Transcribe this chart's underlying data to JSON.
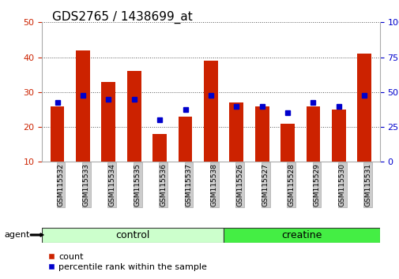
{
  "title": "GDS2765 / 1438699_at",
  "samples": [
    "GSM115532",
    "GSM115533",
    "GSM115534",
    "GSM115535",
    "GSM115536",
    "GSM115537",
    "GSM115538",
    "GSM115526",
    "GSM115527",
    "GSM115528",
    "GSM115529",
    "GSM115530",
    "GSM115531"
  ],
  "count_values": [
    26,
    42,
    33,
    36,
    18,
    23,
    39,
    27,
    26,
    21,
    26,
    25,
    41
  ],
  "percentile_values": [
    27,
    29,
    28,
    28,
    22,
    25,
    29,
    26,
    26,
    24,
    27,
    26,
    29
  ],
  "bar_bottom": 10,
  "ylim_left": [
    10,
    50
  ],
  "ylim_right": [
    0,
    100
  ],
  "yticks_left": [
    10,
    20,
    30,
    40,
    50
  ],
  "yticks_right": [
    0,
    25,
    50,
    75,
    100
  ],
  "ytick_labels_right": [
    "0",
    "25",
    "50",
    "75",
    "100%"
  ],
  "bar_color": "#cc2200",
  "percentile_color": "#0000cc",
  "group_labels": [
    "control",
    "creatine"
  ],
  "n_control": 7,
  "n_creatine": 6,
  "group_colors": [
    "#ccffcc",
    "#44ee44"
  ],
  "agent_label": "agent",
  "legend_count_label": "count",
  "legend_percentile_label": "percentile rank within the sample",
  "left_tick_color": "#cc2200",
  "right_tick_color": "#0000cc",
  "tick_label_bg": "#cccccc",
  "title_fontsize": 11,
  "axis_fontsize": 8,
  "legend_fontsize": 8,
  "group_label_fontsize": 9,
  "tick_fontsize": 6.5
}
